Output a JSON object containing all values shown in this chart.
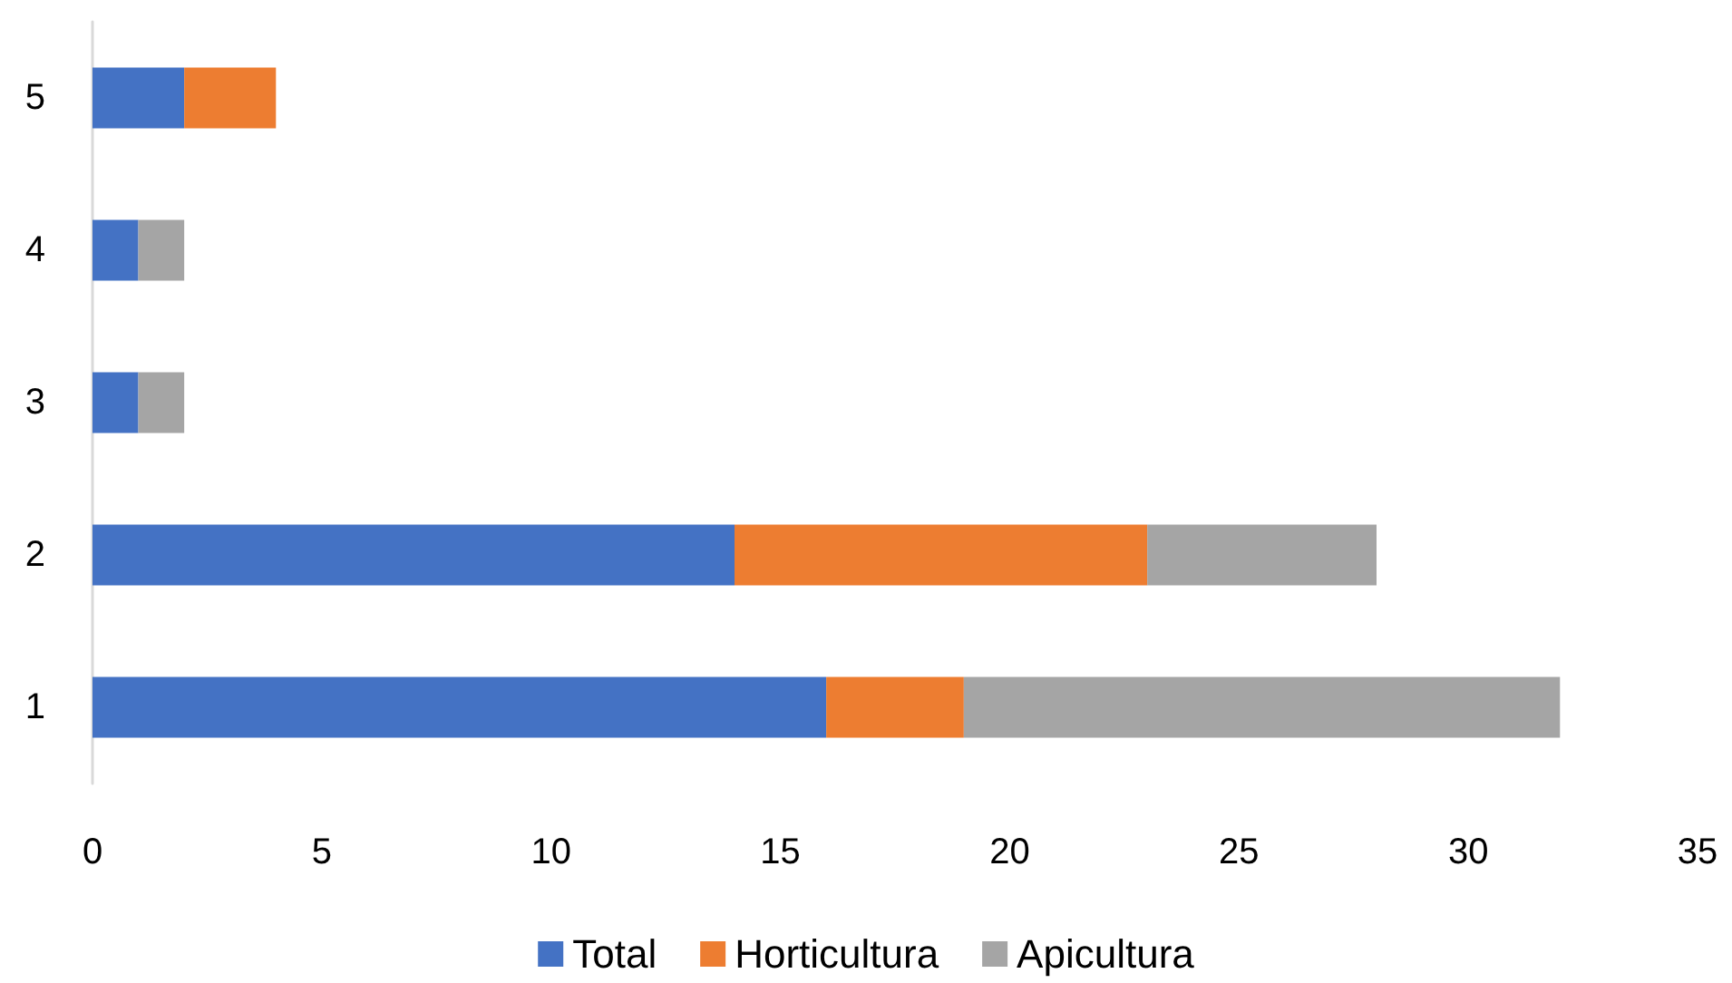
{
  "chart_data": {
    "type": "bar",
    "orientation": "horizontal",
    "stacked": true,
    "categories": [
      "5",
      "4",
      "3",
      "2",
      "1"
    ],
    "series": [
      {
        "name": "Total",
        "color": "#4472c4",
        "values": [
          2,
          1,
          1,
          14,
          16
        ]
      },
      {
        "name": "Horticultura",
        "color": "#ed7d31",
        "values": [
          2,
          0,
          0,
          9,
          3
        ]
      },
      {
        "name": "Apicultura",
        "color": "#a5a5a5",
        "values": [
          0,
          1,
          1,
          5,
          13
        ]
      }
    ],
    "xlim": [
      0,
      35
    ],
    "xticks": [
      0,
      5,
      10,
      15,
      20,
      25,
      30,
      35
    ],
    "grid": false,
    "legend": "bottom"
  }
}
